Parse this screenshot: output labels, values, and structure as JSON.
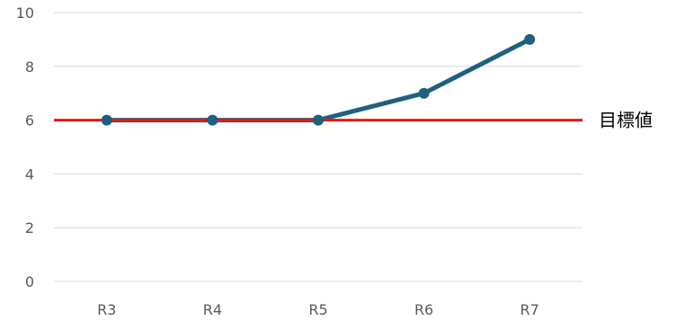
{
  "chart_data": {
    "type": "line",
    "categories": [
      "R3",
      "R4",
      "R5",
      "R6",
      "R7"
    ],
    "series": [
      {
        "values": [
          6,
          6,
          6,
          7,
          9
        ],
        "color": "#1f5f7f"
      }
    ],
    "target": {
      "label": "目標値",
      "value": 6,
      "color": "#e8170e"
    },
    "ylim": [
      0,
      10
    ],
    "yticks": [
      "0",
      "2",
      "4",
      "6",
      "8",
      "10"
    ],
    "grid": true,
    "grid_color": "#d9d9d9"
  }
}
